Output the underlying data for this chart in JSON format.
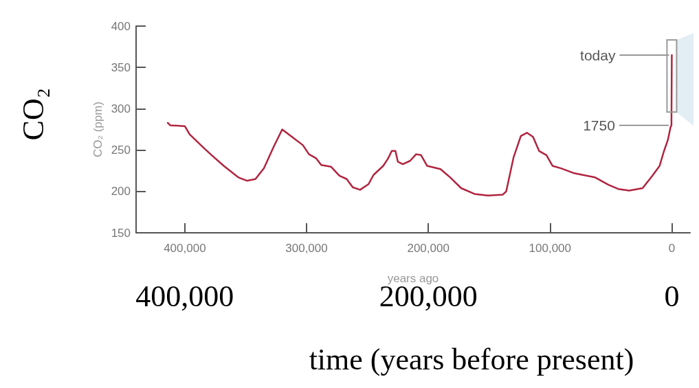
{
  "chart_data": {
    "type": "line",
    "xlabel": "years ago",
    "ylabel": "CO₂ (ppm)",
    "x2label": "time (years before present)",
    "xlim": [
      440000,
      -15000
    ],
    "xticks": [
      {
        "value": 400000,
        "label": "400,000"
      },
      {
        "value": 300000,
        "label": "300,000"
      },
      {
        "value": 200000,
        "label": "200,000"
      },
      {
        "value": 100000,
        "label": "100,000"
      },
      0
    ],
    "x2lim": [
      440000,
      -15000
    ],
    "x2ticks": [
      {
        "value": 400000,
        "label": "400,000"
      },
      {
        "value": 200000,
        "label": "200,000"
      },
      0
    ],
    "ylim": [
      150,
      400
    ],
    "yticks": [
      150,
      200,
      250,
      300,
      350,
      400
    ],
    "grid": false,
    "marker": "none",
    "line_style": "solid",
    "series": [
      {
        "color": "#b0243f",
        "x": [
          414000,
          412000,
          400000,
          396000,
          384000,
          378000,
          368000,
          356000,
          349000,
          342000,
          335000,
          327000,
          320000,
          312000,
          303000,
          298000,
          292000,
          288000,
          280000,
          273000,
          267000,
          262000,
          256000,
          249000,
          245000,
          237000,
          233000,
          230000,
          227000,
          225000,
          221000,
          215000,
          210000,
          206000,
          201000,
          190000,
          182000,
          173000,
          162000,
          151000,
          139000,
          136000,
          130000,
          124000,
          119000,
          114000,
          109000,
          103000,
          98000,
          91000,
          80000,
          63000,
          52000,
          44000,
          35000,
          24000,
          16000,
          10000,
          6600,
          3300,
          1000,
          300,
          0
        ],
        "values": [
          283,
          280,
          279,
          269,
          252,
          244,
          231,
          217,
          213,
          215,
          228,
          254,
          275,
          266,
          256,
          245,
          240,
          232,
          230,
          219,
          215,
          205,
          202,
          209,
          220,
          231,
          240,
          249,
          249,
          236,
          233,
          237,
          245,
          244,
          231,
          227,
          217,
          204,
          197,
          195,
          196,
          200,
          241,
          267,
          271,
          266,
          249,
          244,
          231,
          228,
          222,
          217,
          208,
          203,
          201,
          204,
          219,
          231,
          248,
          262,
          278,
          280,
          365
        ]
      }
    ],
    "annotations": [
      "CO₂",
      {
        "text": "today",
        "x": 0,
        "y": 365
      },
      {
        "text": "1750",
        "x": 300,
        "y": 280
      }
    ]
  }
}
